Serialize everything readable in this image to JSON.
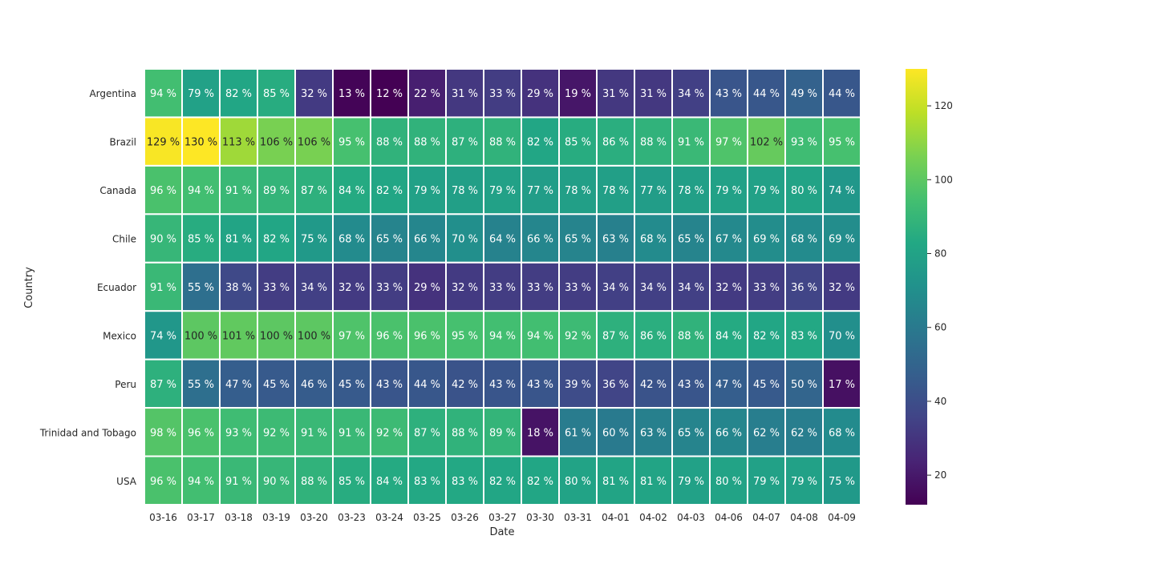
{
  "chart_data": {
    "type": "heatmap",
    "title": "",
    "xlabel": "Date",
    "ylabel": "Country",
    "value_suffix": " %",
    "colormap": "viridis",
    "grid_line_color": "#ffffff",
    "x_categories": [
      "03-16",
      "03-17",
      "03-18",
      "03-19",
      "03-20",
      "03-23",
      "03-24",
      "03-25",
      "03-26",
      "03-27",
      "03-30",
      "03-31",
      "04-01",
      "04-02",
      "04-03",
      "04-06",
      "04-07",
      "04-08",
      "04-09"
    ],
    "y_categories": [
      "Argentina",
      "Brazil",
      "Canada",
      "Chile",
      "Ecuador",
      "Mexico",
      "Peru",
      "Trinidad and Tobago",
      "USA"
    ],
    "values": [
      [
        94,
        79,
        82,
        85,
        32,
        13,
        12,
        22,
        31,
        33,
        29,
        19,
        31,
        31,
        34,
        43,
        44,
        49,
        44
      ],
      [
        129,
        130,
        113,
        106,
        106,
        95,
        88,
        88,
        87,
        88,
        82,
        85,
        86,
        88,
        91,
        97,
        102,
        93,
        95
      ],
      [
        96,
        94,
        91,
        89,
        87,
        84,
        82,
        79,
        78,
        79,
        77,
        78,
        78,
        77,
        78,
        79,
        79,
        80,
        74
      ],
      [
        90,
        85,
        81,
        82,
        75,
        68,
        65,
        66,
        70,
        64,
        66,
        65,
        63,
        68,
        65,
        67,
        69,
        68,
        69
      ],
      [
        91,
        55,
        38,
        33,
        34,
        32,
        33,
        29,
        32,
        33,
        33,
        33,
        34,
        34,
        34,
        32,
        33,
        36,
        32
      ],
      [
        74,
        100,
        101,
        100,
        100,
        97,
        96,
        96,
        95,
        94,
        94,
        92,
        87,
        86,
        88,
        84,
        82,
        83,
        70
      ],
      [
        87,
        55,
        47,
        45,
        46,
        45,
        43,
        44,
        42,
        43,
        43,
        39,
        36,
        42,
        43,
        47,
        45,
        50,
        17
      ],
      [
        98,
        96,
        93,
        92,
        91,
        91,
        92,
        87,
        88,
        89,
        18,
        61,
        60,
        63,
        65,
        66,
        62,
        62,
        68
      ],
      [
        96,
        94,
        91,
        90,
        88,
        85,
        84,
        83,
        83,
        82,
        82,
        80,
        81,
        81,
        79,
        80,
        79,
        79,
        75
      ]
    ],
    "colorbar": {
      "range": [
        12,
        130
      ],
      "ticks": [
        20,
        40,
        60,
        80,
        100,
        120
      ]
    }
  }
}
